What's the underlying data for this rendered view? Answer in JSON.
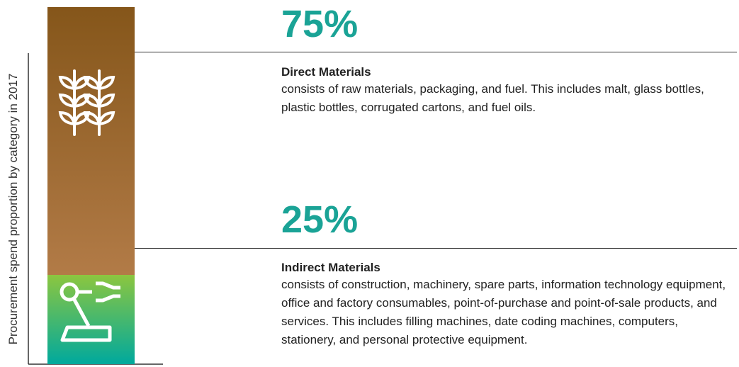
{
  "chart_data": {
    "type": "stacked_bar",
    "ylabel": "Procurement spend proportion by category in 2017",
    "series": [
      {
        "name": "Direct Materials",
        "values": [
          75
        ],
        "value_labels": [
          "75%"
        ],
        "colors": [
          "#85561a",
          "#b27b47"
        ],
        "description": "consists of raw materials, packaging, and fuel. This includes malt, glass bottles, plastic bottles, corrugated cartons, and fuel oils."
      },
      {
        "name": "Indirect Materials",
        "values": [
          25
        ],
        "value_labels": [
          "25%"
        ],
        "colors": [
          "#8cc63f",
          "#00a99d"
        ],
        "description": "consists of construction, machinery, spare parts, information technology equipment, office and factory consumables, point-of-purchase and point-of-sale products, and services. This includes filling machines, date coding machines, computers, stationery, and personal protective equipment."
      }
    ]
  }
}
